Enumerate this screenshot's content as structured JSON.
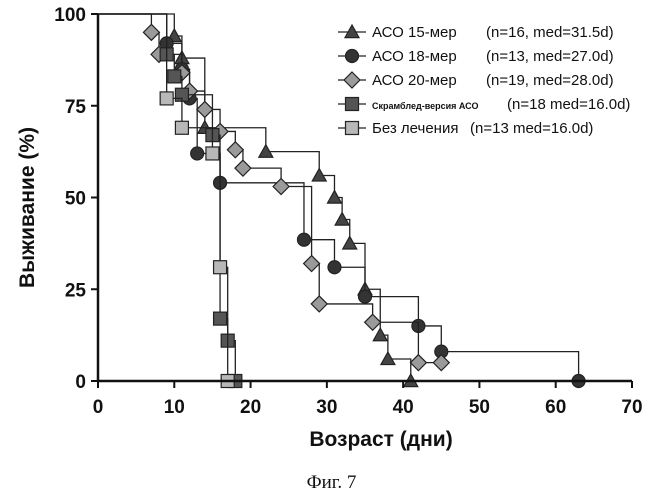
{
  "caption": "Фиг. 7",
  "chart_data": {
    "type": "line",
    "step": true,
    "xlabel": "Возраст (дни)",
    "ylabel": "Выживание  (%)",
    "xlim": [
      0,
      70
    ],
    "ylim": [
      0,
      100
    ],
    "xticks": [
      0,
      10,
      20,
      30,
      40,
      50,
      60,
      70
    ],
    "yticks": [
      0,
      25,
      50,
      75,
      100
    ],
    "legend_position": "top-right",
    "series": [
      {
        "name": "АСО 15-мер",
        "stats": "(n=16, med=31.5d)",
        "marker": "triangle",
        "color": "#444444",
        "x": [
          0,
          10,
          11,
          14,
          22,
          29,
          31,
          32,
          33,
          35,
          37,
          38,
          41,
          63
        ],
        "y": [
          100,
          94,
          88,
          69,
          62.5,
          56,
          50,
          44,
          37.5,
          25,
          12.5,
          6,
          0,
          0
        ]
      },
      {
        "name": "АСО 18-мер",
        "stats": "(n=13, med=27.0d)",
        "marker": "circle",
        "color": "#333333",
        "x": [
          0,
          9,
          11,
          12,
          13,
          16,
          27,
          31,
          35,
          42,
          45,
          63
        ],
        "y": [
          100,
          92,
          85,
          77,
          62,
          54,
          38.5,
          31,
          23,
          15,
          8,
          0
        ]
      },
      {
        "name": "АСО 20-мер",
        "stats": "(n=19, med=28.0d)",
        "marker": "diamond",
        "color": "#9a9a9a",
        "x": [
          0,
          7,
          8,
          11,
          12,
          14,
          16,
          18,
          19,
          24,
          28,
          29,
          36,
          42,
          45
        ],
        "y": [
          100,
          95,
          89,
          84,
          79,
          74,
          68,
          63,
          58,
          53,
          32,
          21,
          16,
          5,
          5
        ]
      },
      {
        "name": "Скрамблед-версия АСО",
        "stats": "(n=18 med=16.0d)",
        "marker": "square",
        "color": "#555555",
        "x": [
          0,
          9,
          10,
          11,
          15,
          16,
          17,
          18
        ],
        "y": [
          100,
          89,
          83,
          78,
          67,
          17,
          11,
          0
        ]
      },
      {
        "name": "Без лечения",
        "stats": "(n=13 med=16.0d)",
        "marker": "square",
        "color": "#b8b8b8",
        "x": [
          0,
          9,
          11,
          15,
          16,
          17
        ],
        "y": [
          100,
          77,
          69,
          62,
          31,
          0
        ]
      }
    ]
  }
}
